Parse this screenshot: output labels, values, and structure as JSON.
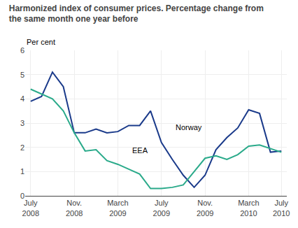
{
  "chart_data": {
    "type": "line",
    "title": "Harmonized index of consumer prices. Percentage change from\nthe same month one year before",
    "y_label": "Per cent",
    "categories": [
      "July\n2008",
      null,
      null,
      null,
      "Nov.\n2008",
      null,
      null,
      null,
      "March\n2009",
      null,
      null,
      null,
      "July\n2009",
      null,
      null,
      null,
      "Nov.\n2009",
      null,
      null,
      null,
      "March\n2010",
      null,
      null,
      "July\n2010"
    ],
    "series": [
      {
        "name": "Norway",
        "color": "#1a3a8a",
        "values": [
          3.9,
          4.1,
          5.1,
          4.5,
          2.6,
          2.6,
          2.75,
          2.6,
          2.65,
          2.9,
          2.9,
          3.5,
          2.2,
          1.5,
          0.85,
          0.35,
          0.85,
          1.9,
          2.4,
          2.8,
          3.55,
          3.4,
          1.8,
          1.85
        ]
      },
      {
        "name": "EEA",
        "color": "#2aaa8a",
        "values": [
          4.4,
          4.2,
          4.0,
          3.5,
          2.6,
          1.85,
          1.9,
          1.45,
          1.3,
          1.1,
          0.9,
          0.3,
          0.3,
          0.35,
          0.45,
          1.0,
          1.55,
          1.65,
          1.5,
          1.7,
          2.05,
          2.1,
          1.95,
          1.8
        ]
      }
    ],
    "annotations": [
      {
        "text": "Norway",
        "x": 13.2,
        "y": 2.6
      },
      {
        "text": "EEA",
        "x": 9.2,
        "y": 1.65
      }
    ],
    "ylim": [
      0,
      6
    ],
    "yticks": [
      0,
      1,
      2,
      3,
      4,
      5,
      6
    ],
    "grid": true
  }
}
